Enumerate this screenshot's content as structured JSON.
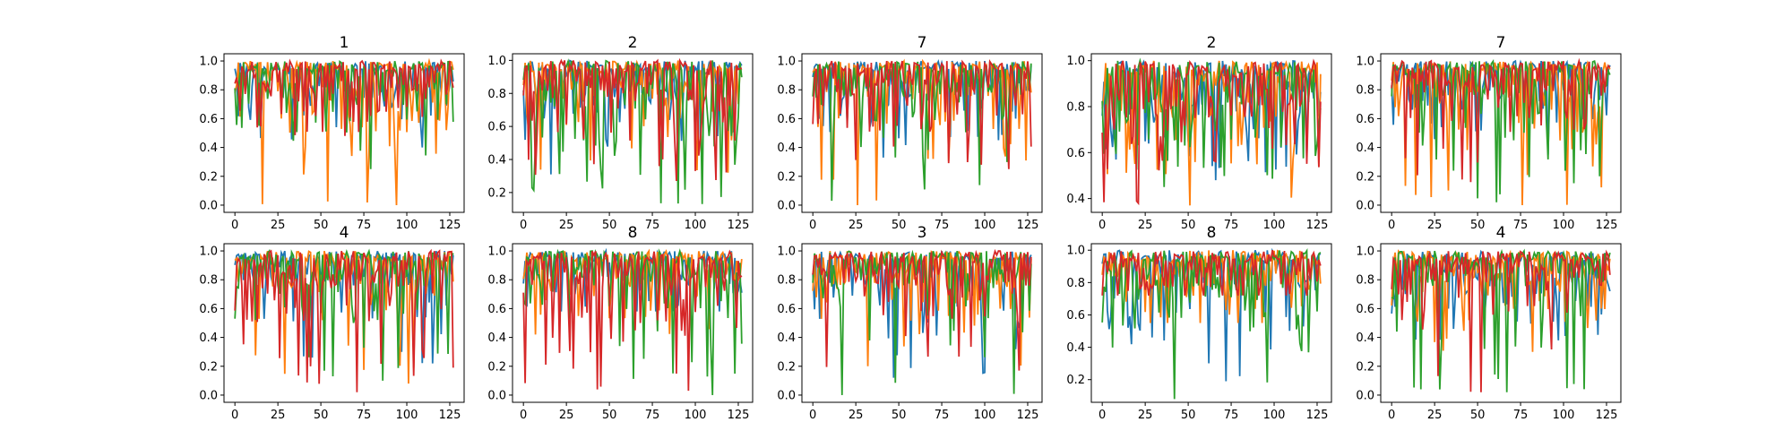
{
  "chart_data": {
    "type": "line",
    "series_colors": [
      "#1f77b4",
      "#ff7f0e",
      "#2ca02c",
      "#d62728"
    ],
    "x_length": 128,
    "panels": [
      {
        "title": "1",
        "ylim": [
          -0.05,
          1.05
        ],
        "yticks": [
          "0.0",
          "0.2",
          "0.4",
          "0.6",
          "0.8",
          "1.0"
        ],
        "ytick_values": [
          0,
          0.2,
          0.4,
          0.6,
          0.8,
          1.0
        ],
        "xticks": [
          "0",
          "25",
          "50",
          "75",
          "100",
          "125"
        ],
        "xtick_values": [
          0,
          25,
          50,
          75,
          100,
          125
        ],
        "series_min": [
          0.4,
          0.0,
          0.25,
          0.48
        ]
      },
      {
        "title": "2",
        "ylim": [
          0.08,
          1.04
        ],
        "yticks": [
          "0.2",
          "0.4",
          "0.6",
          "0.8",
          "1.0"
        ],
        "ytick_values": [
          0.2,
          0.4,
          0.6,
          0.8,
          1.0
        ],
        "xticks": [
          "0",
          "25",
          "50",
          "75",
          "100",
          "125"
        ],
        "xtick_values": [
          0,
          25,
          50,
          75,
          100,
          125
        ],
        "series_min": [
          0.31,
          0.32,
          0.13,
          0.27
        ]
      },
      {
        "title": "7",
        "ylim": [
          -0.05,
          1.05
        ],
        "yticks": [
          "0.0",
          "0.2",
          "0.4",
          "0.6",
          "0.8",
          "1.0"
        ],
        "ytick_values": [
          0,
          0.2,
          0.4,
          0.6,
          0.8,
          1.0
        ],
        "xticks": [
          "0",
          "25",
          "50",
          "75",
          "100",
          "125"
        ],
        "xtick_values": [
          0,
          25,
          50,
          75,
          100,
          125
        ],
        "series_min": [
          0.33,
          0.0,
          0.03,
          0.25
        ]
      },
      {
        "title": "2",
        "ylim": [
          0.34,
          1.03
        ],
        "yticks": [
          "0.4",
          "0.6",
          "0.8",
          "1.0"
        ],
        "ytick_values": [
          0.4,
          0.6,
          0.8,
          1.0
        ],
        "xticks": [
          "0",
          "25",
          "50",
          "75",
          "100",
          "125"
        ],
        "xtick_values": [
          0,
          25,
          50,
          75,
          100,
          125
        ],
        "series_min": [
          0.48,
          0.37,
          0.45,
          0.38
        ]
      },
      {
        "title": "7",
        "ylim": [
          -0.05,
          1.05
        ],
        "yticks": [
          "0.0",
          "0.2",
          "0.4",
          "0.6",
          "0.8",
          "1.0"
        ],
        "ytick_values": [
          0,
          0.2,
          0.4,
          0.6,
          0.8,
          1.0
        ],
        "xticks": [
          "0",
          "25",
          "50",
          "75",
          "100",
          "125"
        ],
        "xtick_values": [
          0,
          25,
          50,
          75,
          100,
          125
        ],
        "series_min": [
          0.35,
          0.0,
          0.02,
          0.16
        ]
      },
      {
        "title": "4",
        "ylim": [
          -0.05,
          1.05
        ],
        "yticks": [
          "0.0",
          "0.2",
          "0.4",
          "0.6",
          "0.8",
          "1.0"
        ],
        "ytick_values": [
          0,
          0.2,
          0.4,
          0.6,
          0.8,
          1.0
        ],
        "xticks": [
          "0",
          "25",
          "50",
          "75",
          "100",
          "125"
        ],
        "xtick_values": [
          0,
          25,
          50,
          75,
          100,
          125
        ],
        "series_min": [
          0.22,
          0.08,
          0.1,
          0.02
        ]
      },
      {
        "title": "8",
        "ylim": [
          -0.05,
          1.05
        ],
        "yticks": [
          "0.0",
          "0.2",
          "0.4",
          "0.6",
          "0.8",
          "1.0"
        ],
        "ytick_values": [
          0,
          0.2,
          0.4,
          0.6,
          0.8,
          1.0
        ],
        "xticks": [
          "0",
          "25",
          "50",
          "75",
          "100",
          "125"
        ],
        "xtick_values": [
          0,
          25,
          50,
          75,
          100,
          125
        ],
        "series_min": [
          0.58,
          0.42,
          0.0,
          0.03
        ]
      },
      {
        "title": "3",
        "ylim": [
          -0.05,
          1.05
        ],
        "yticks": [
          "0.0",
          "0.2",
          "0.4",
          "0.6",
          "0.8",
          "1.0"
        ],
        "ytick_values": [
          0,
          0.2,
          0.4,
          0.6,
          0.8,
          1.0
        ],
        "xticks": [
          "0",
          "25",
          "50",
          "75",
          "100",
          "125"
        ],
        "xtick_values": [
          0,
          25,
          50,
          75,
          100,
          125
        ],
        "series_min": [
          0.12,
          0.2,
          0.0,
          0.17
        ]
      },
      {
        "title": "8",
        "ylim": [
          0.06,
          1.04
        ],
        "yticks": [
          "0.2",
          "0.4",
          "0.6",
          "0.8",
          "1.0"
        ],
        "ytick_values": [
          0.2,
          0.4,
          0.6,
          0.8,
          1.0
        ],
        "xticks": [
          "0",
          "25",
          "50",
          "75",
          "100",
          "125"
        ],
        "xtick_values": [
          0,
          25,
          50,
          75,
          100,
          125
        ],
        "series_min": [
          0.19,
          0.55,
          0.08,
          0.72
        ]
      },
      {
        "title": "4",
        "ylim": [
          -0.05,
          1.05
        ],
        "yticks": [
          "0.0",
          "0.2",
          "0.4",
          "0.6",
          "0.8",
          "1.0"
        ],
        "ytick_values": [
          0,
          0.2,
          0.4,
          0.6,
          0.8,
          1.0
        ],
        "xticks": [
          "0",
          "25",
          "50",
          "75",
          "100",
          "125"
        ],
        "xtick_values": [
          0,
          25,
          50,
          75,
          100,
          125
        ],
        "series_min": [
          0.38,
          0.3,
          0.02,
          0.02
        ]
      }
    ]
  }
}
